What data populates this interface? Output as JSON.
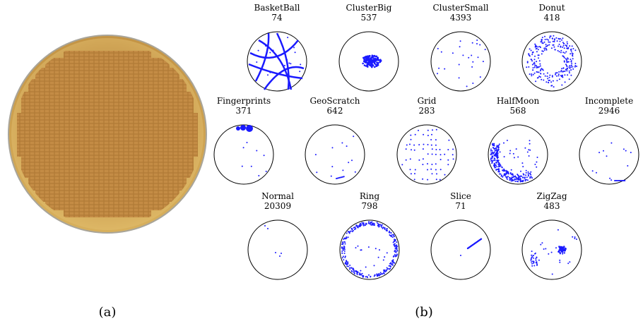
{
  "panels": [
    {
      "caption": "(a)"
    },
    {
      "caption": "(b)",
      "classes": [
        {
          "name": "BasketBall",
          "count": 74
        },
        {
          "name": "ClusterBig",
          "count": 537
        },
        {
          "name": "ClusterSmall",
          "count": 4393
        },
        {
          "name": "Donut",
          "count": 418
        },
        {
          "name": "Fingerprints",
          "count": 371
        },
        {
          "name": "GeoScratch",
          "count": 642
        },
        {
          "name": "Grid",
          "count": 283
        },
        {
          "name": "HalfMoon",
          "count": 568
        },
        {
          "name": "Incomplete",
          "count": 2946
        },
        {
          "name": "Normal",
          "count": 20309
        },
        {
          "name": "Ring",
          "count": 798
        },
        {
          "name": "Slice",
          "count": 71
        },
        {
          "name": "ZigZag",
          "count": 483
        }
      ]
    }
  ]
}
